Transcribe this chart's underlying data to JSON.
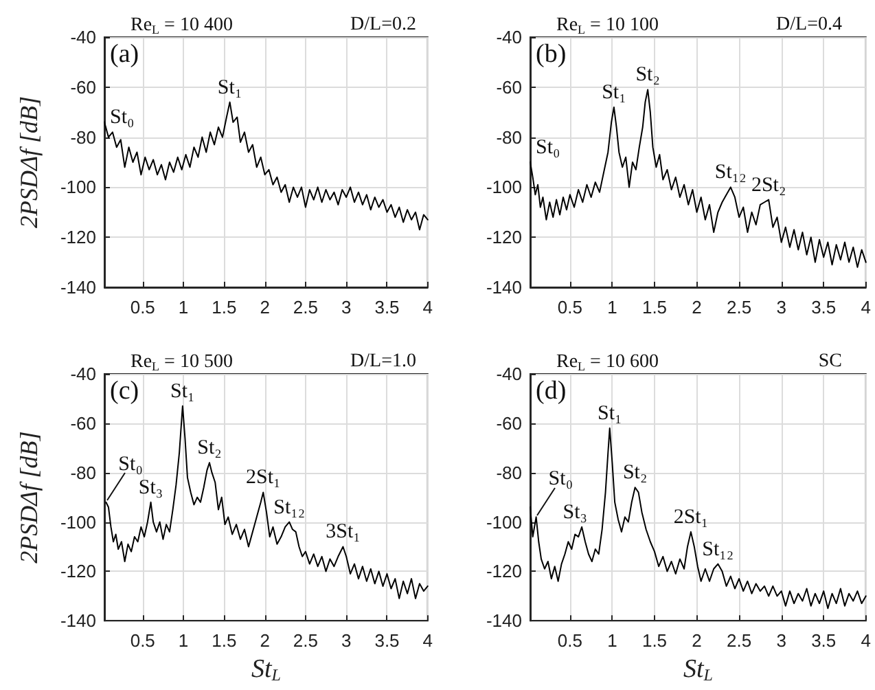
{
  "chart_data": [
    {
      "type": "line",
      "title": "Re$_{L}$ = 10 400",
      "subtitle": "D/L=0.2",
      "ylabel": "2PSDΔf [dB]",
      "grid": true,
      "line_style": "solid",
      "xlim": [
        0.03,
        4
      ],
      "xticks": [
        0.5,
        1,
        1.5,
        2,
        2.5,
        3,
        3.5,
        4
      ],
      "ylim": [
        -140,
        -40
      ],
      "yticks": [
        -140,
        -120,
        -100,
        -80,
        -60,
        -40
      ],
      "annotations": [
        "(a)",
        {
          "text": "St₀",
          "x": 0.23,
          "y": -81
        },
        {
          "text": "St₁",
          "x": 1.57,
          "y": -66
        }
      ],
      "x": [
        0.03,
        0.08,
        0.13,
        0.18,
        0.23,
        0.28,
        0.33,
        0.38,
        0.43,
        0.48,
        0.53,
        0.58,
        0.63,
        0.68,
        0.73,
        0.78,
        0.83,
        0.88,
        0.93,
        0.98,
        1.03,
        1.08,
        1.13,
        1.18,
        1.23,
        1.28,
        1.33,
        1.38,
        1.43,
        1.48,
        1.53,
        1.57,
        1.61,
        1.66,
        1.7,
        1.75,
        1.8,
        1.85,
        1.9,
        1.95,
        2,
        2.05,
        2.1,
        2.15,
        2.2,
        2.25,
        2.3,
        2.35,
        2.4,
        2.45,
        2.5,
        2.55,
        2.6,
        2.65,
        2.7,
        2.75,
        2.8,
        2.85,
        2.9,
        2.95,
        3,
        3.05,
        3.1,
        3.15,
        3.2,
        3.25,
        3.3,
        3.35,
        3.4,
        3.45,
        3.5,
        3.55,
        3.6,
        3.65,
        3.7,
        3.75,
        3.8,
        3.85,
        3.9,
        3.95,
        4
      ],
      "series": [
        {
          "color": "#000000",
          "values": [
            -74,
            -80,
            -78,
            -84,
            -81,
            -92,
            -84,
            -90,
            -86,
            -95,
            -88,
            -93,
            -89,
            -95,
            -91,
            -97,
            -90,
            -94,
            -88,
            -93,
            -87,
            -92,
            -84,
            -88,
            -80,
            -86,
            -78,
            -83,
            -76,
            -80,
            -72,
            -66,
            -74,
            -72,
            -82,
            -78,
            -86,
            -83,
            -92,
            -88,
            -95,
            -93,
            -99,
            -96,
            -102,
            -99,
            -106,
            -100,
            -104,
            -100,
            -108,
            -101,
            -105,
            -100,
            -106,
            -101,
            -105,
            -102,
            -107,
            -101,
            -104,
            -100,
            -106,
            -102,
            -107,
            -103,
            -109,
            -104,
            -108,
            -105,
            -110,
            -107,
            -112,
            -108,
            -114,
            -109,
            -113,
            -110,
            -117,
            -111,
            -113
          ]
        }
      ]
    },
    {
      "type": "line",
      "title": "Re$_{L}$ = 10 100",
      "subtitle": "D/L=0.4",
      "grid": true,
      "line_style": "solid",
      "xlim": [
        0.03,
        4
      ],
      "xticks": [
        0.5,
        1,
        1.5,
        2,
        2.5,
        3,
        3.5,
        4
      ],
      "ylim": [
        -140,
        -40
      ],
      "yticks": [
        -140,
        -120,
        -100,
        -80,
        -60,
        -40
      ],
      "annotations": [
        "(b)",
        {
          "text": "St₀",
          "x": 0.12,
          "y": -99
        },
        {
          "text": "St₁",
          "x": 1.02,
          "y": -68
        },
        {
          "text": "St₂",
          "x": 1.42,
          "y": -61
        },
        {
          "text": "St₁₂",
          "x": 2.4,
          "y": -100
        },
        {
          "text": "2St₂",
          "x": 2.85,
          "y": -105
        }
      ],
      "x": [
        0.03,
        0.06,
        0.09,
        0.12,
        0.15,
        0.18,
        0.22,
        0.26,
        0.3,
        0.34,
        0.38,
        0.42,
        0.46,
        0.5,
        0.55,
        0.6,
        0.65,
        0.7,
        0.75,
        0.8,
        0.85,
        0.9,
        0.95,
        0.99,
        1.02,
        1.05,
        1.08,
        1.12,
        1.16,
        1.2,
        1.24,
        1.28,
        1.32,
        1.36,
        1.39,
        1.42,
        1.45,
        1.48,
        1.52,
        1.56,
        1.6,
        1.65,
        1.7,
        1.75,
        1.8,
        1.85,
        1.9,
        1.95,
        2,
        2.05,
        2.1,
        2.15,
        2.2,
        2.25,
        2.3,
        2.35,
        2.4,
        2.45,
        2.5,
        2.55,
        2.6,
        2.65,
        2.7,
        2.75,
        2.8,
        2.85,
        2.9,
        2.95,
        3,
        3.05,
        3.1,
        3.15,
        3.2,
        3.25,
        3.3,
        3.35,
        3.4,
        3.45,
        3.5,
        3.55,
        3.6,
        3.65,
        3.7,
        3.75,
        3.8,
        3.85,
        3.9,
        3.95,
        4
      ],
      "series": [
        {
          "color": "#000000",
          "values": [
            -90,
            -96,
            -103,
            -99,
            -108,
            -104,
            -113,
            -106,
            -112,
            -105,
            -111,
            -104,
            -109,
            -103,
            -108,
            -101,
            -106,
            -99,
            -104,
            -98,
            -102,
            -94,
            -86,
            -74,
            -68,
            -76,
            -86,
            -92,
            -88,
            -100,
            -90,
            -93,
            -84,
            -76,
            -66,
            -61,
            -70,
            -84,
            -92,
            -87,
            -97,
            -93,
            -101,
            -96,
            -104,
            -99,
            -107,
            -101,
            -110,
            -104,
            -113,
            -107,
            -118,
            -110,
            -106,
            -103,
            -100,
            -104,
            -112,
            -108,
            -118,
            -110,
            -115,
            -107,
            -106,
            -105,
            -116,
            -112,
            -122,
            -116,
            -124,
            -117,
            -125,
            -118,
            -127,
            -120,
            -130,
            -121,
            -128,
            -122,
            -131,
            -123,
            -129,
            -122,
            -130,
            -124,
            -132,
            -125,
            -130
          ]
        }
      ]
    },
    {
      "type": "line",
      "title": "Re$_{L}$ = 10 500",
      "subtitle": "D/L=1.0",
      "xlabel": "St$_{L}$",
      "ylabel": "2PSDΔf [dB]",
      "grid": true,
      "line_style": "solid",
      "xlim": [
        0.03,
        4
      ],
      "xticks": [
        0.5,
        1,
        1.5,
        2,
        2.5,
        3,
        3.5,
        4
      ],
      "ylim": [
        -140,
        -40
      ],
      "yticks": [
        -140,
        -120,
        -100,
        -80,
        -60,
        -40
      ],
      "annotations": [
        "(c)",
        {
          "text": "St₀",
          "x": 0.05,
          "y": -92
        },
        {
          "text": "St₃",
          "x": 0.6,
          "y": -92
        },
        {
          "text": "St₁",
          "x": 0.99,
          "y": -53
        },
        {
          "text": "St₂",
          "x": 1.32,
          "y": -76
        },
        {
          "text": "2St₁",
          "x": 1.98,
          "y": -88
        },
        {
          "text": "St₁₂",
          "x": 2.3,
          "y": -100
        },
        {
          "text": "3St₁",
          "x": 2.96,
          "y": -110
        }
      ],
      "x": [
        0.05,
        0.08,
        0.11,
        0.14,
        0.17,
        0.2,
        0.24,
        0.28,
        0.32,
        0.36,
        0.4,
        0.44,
        0.48,
        0.52,
        0.56,
        0.6,
        0.63,
        0.67,
        0.71,
        0.75,
        0.79,
        0.83,
        0.87,
        0.91,
        0.95,
        0.99,
        1.02,
        1.05,
        1.09,
        1.13,
        1.17,
        1.21,
        1.25,
        1.29,
        1.32,
        1.35,
        1.39,
        1.43,
        1.47,
        1.51,
        1.55,
        1.6,
        1.65,
        1.7,
        1.75,
        1.8,
        1.85,
        1.9,
        1.95,
        1.98,
        2.02,
        2.06,
        2.1,
        2.15,
        2.2,
        2.25,
        2.3,
        2.34,
        2.38,
        2.42,
        2.46,
        2.5,
        2.55,
        2.6,
        2.65,
        2.7,
        2.75,
        2.8,
        2.85,
        2.9,
        2.96,
        3,
        3.05,
        3.1,
        3.15,
        3.2,
        3.25,
        3.3,
        3.35,
        3.4,
        3.45,
        3.5,
        3.55,
        3.6,
        3.65,
        3.7,
        3.75,
        3.8,
        3.85,
        3.9,
        3.95,
        4
      ],
      "series": [
        {
          "color": "#000000",
          "values": [
            -92,
            -94,
            -102,
            -108,
            -105,
            -111,
            -108,
            -116,
            -109,
            -112,
            -106,
            -108,
            -102,
            -106,
            -100,
            -92,
            -100,
            -104,
            -100,
            -107,
            -101,
            -104,
            -95,
            -85,
            -72,
            -53,
            -66,
            -82,
            -88,
            -93,
            -90,
            -92,
            -86,
            -79,
            -76,
            -80,
            -84,
            -95,
            -90,
            -101,
            -98,
            -105,
            -101,
            -107,
            -103,
            -110,
            -104,
            -98,
            -92,
            -88,
            -96,
            -106,
            -102,
            -109,
            -106,
            -102,
            -100,
            -103,
            -104,
            -110,
            -114,
            -112,
            -117,
            -113,
            -118,
            -114,
            -120,
            -115,
            -118,
            -114,
            -110,
            -114,
            -121,
            -117,
            -123,
            -118,
            -124,
            -119,
            -125,
            -120,
            -126,
            -121,
            -127,
            -123,
            -131,
            -124,
            -129,
            -123,
            -131,
            -125,
            -128,
            -126
          ]
        }
      ]
    },
    {
      "type": "line",
      "title": "Re$_{L}$ = 10 600",
      "subtitle": "SC",
      "xlabel": "St$_{L}$",
      "grid": true,
      "line_style": "solid",
      "xlim": [
        0.03,
        4
      ],
      "xticks": [
        0.5,
        1,
        1.5,
        2,
        2.5,
        3,
        3.5,
        4
      ],
      "ylim": [
        -140,
        -40
      ],
      "yticks": [
        -140,
        -120,
        -100,
        -80,
        -60,
        -40
      ],
      "annotations": [
        "(d)",
        {
          "text": "St₀",
          "x": 0.1,
          "y": -98
        },
        {
          "text": "St₃",
          "x": 0.56,
          "y": -105
        },
        {
          "text": "St₁",
          "x": 0.97,
          "y": -62
        },
        {
          "text": "St₂",
          "x": 1.27,
          "y": -86
        },
        {
          "text": "2St₁",
          "x": 1.93,
          "y": -104
        },
        {
          "text": "St₁₂",
          "x": 2.25,
          "y": -117
        }
      ],
      "x": [
        0.03,
        0.06,
        0.1,
        0.13,
        0.16,
        0.2,
        0.24,
        0.28,
        0.32,
        0.36,
        0.4,
        0.44,
        0.48,
        0.52,
        0.56,
        0.6,
        0.64,
        0.68,
        0.72,
        0.76,
        0.8,
        0.84,
        0.88,
        0.92,
        0.95,
        0.97,
        1,
        1.03,
        1.07,
        1.11,
        1.15,
        1.19,
        1.23,
        1.27,
        1.31,
        1.35,
        1.4,
        1.45,
        1.5,
        1.55,
        1.6,
        1.65,
        1.7,
        1.75,
        1.8,
        1.85,
        1.89,
        1.93,
        1.97,
        2.01,
        2.05,
        2.1,
        2.15,
        2.2,
        2.25,
        2.3,
        2.35,
        2.4,
        2.45,
        2.5,
        2.55,
        2.6,
        2.65,
        2.7,
        2.75,
        2.8,
        2.85,
        2.9,
        2.95,
        3,
        3.05,
        3.1,
        3.15,
        3.2,
        3.25,
        3.3,
        3.35,
        3.4,
        3.45,
        3.5,
        3.55,
        3.6,
        3.65,
        3.7,
        3.75,
        3.8,
        3.85,
        3.9,
        3.95,
        4
      ],
      "series": [
        {
          "color": "#000000",
          "values": [
            -94,
            -106,
            -98,
            -108,
            -115,
            -119,
            -116,
            -123,
            -118,
            -124,
            -117,
            -113,
            -108,
            -111,
            -105,
            -106,
            -102,
            -108,
            -113,
            -116,
            -111,
            -113,
            -103,
            -88,
            -72,
            -62,
            -76,
            -92,
            -99,
            -104,
            -98,
            -100,
            -92,
            -86,
            -88,
            -96,
            -103,
            -108,
            -112,
            -118,
            -114,
            -120,
            -116,
            -121,
            -115,
            -119,
            -110,
            -104,
            -110,
            -118,
            -124,
            -119,
            -124,
            -119,
            -117,
            -120,
            -126,
            -122,
            -127,
            -123,
            -128,
            -124,
            -129,
            -125,
            -128,
            -126,
            -130,
            -126,
            -130,
            -128,
            -134,
            -128,
            -133,
            -129,
            -132,
            -127,
            -134,
            -129,
            -133,
            -128,
            -135,
            -129,
            -133,
            -127,
            -134,
            -129,
            -132,
            -128,
            -133,
            -130
          ]
        }
      ]
    }
  ]
}
